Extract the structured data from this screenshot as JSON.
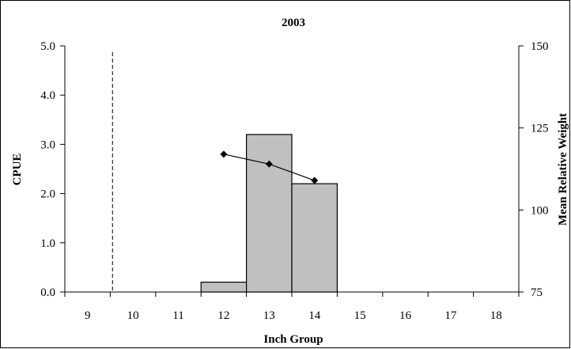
{
  "chart_data": {
    "type": "bar",
    "title": "2003",
    "xlabel": "Inch Group",
    "ylabel": "CPUE",
    "y2label": "Mean Relative Weight",
    "categories": [
      "9",
      "10",
      "11",
      "12",
      "13",
      "14",
      "15",
      "16",
      "17",
      "18"
    ],
    "ylim": [
      0,
      5
    ],
    "yticks": [
      "0.0",
      "1.0",
      "2.0",
      "3.0",
      "4.0",
      "5.0"
    ],
    "y2lim": [
      75,
      150
    ],
    "y2ticks": [
      "75",
      "100",
      "125",
      "150"
    ],
    "grid": false,
    "legend": "none",
    "bars": {
      "name": "CPUE",
      "values": [
        0,
        0,
        0,
        0.2,
        3.2,
        2.2,
        0,
        0,
        0,
        0
      ],
      "color": "#c0c0c0"
    },
    "line": {
      "name": "Mean Relative Weight",
      "axis": "right",
      "points": [
        {
          "x": "12",
          "y": 117
        },
        {
          "x": "13",
          "y": 114
        },
        {
          "x": "14",
          "y": 109
        }
      ]
    },
    "reference_line": {
      "style": "dashed",
      "x": 9.55
    }
  }
}
